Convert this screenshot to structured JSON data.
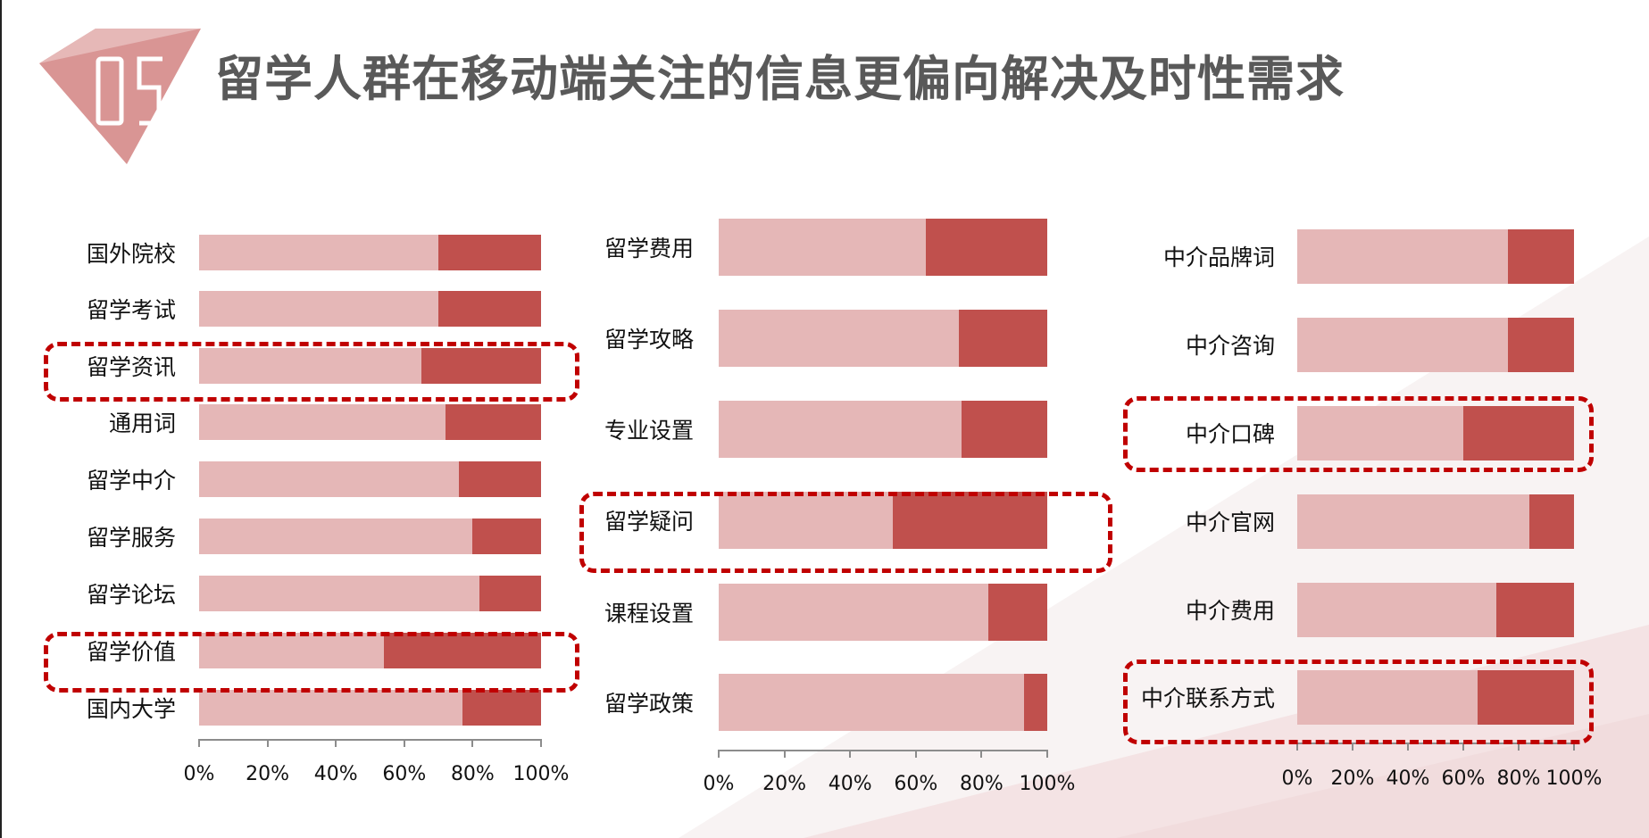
{
  "title": "留学人群在移动端关注的信息更偏向解决及时性需求",
  "section_number": "05",
  "colors": {
    "series1": "#e5b7b7",
    "series2": "#c0504d",
    "highlight": "#c00000",
    "title": "#595959"
  },
  "chart_data": [
    {
      "type": "bar",
      "stacked": "percent",
      "orientation": "horizontal",
      "categories": [
        "国外院校",
        "留学考试",
        "留学资讯",
        "通用词",
        "留学中介",
        "留学服务",
        "留学论坛",
        "留学价值",
        "国内大学"
      ],
      "series": [
        {
          "name": "series1",
          "values": [
            70,
            70,
            65,
            72,
            76,
            80,
            82,
            54,
            77
          ]
        },
        {
          "name": "series2",
          "values": [
            30,
            30,
            35,
            28,
            24,
            20,
            18,
            46,
            23
          ]
        }
      ],
      "xlim": [
        0,
        100
      ],
      "tick_labels": [
        "0%",
        "20%",
        "40%",
        "60%",
        "80%",
        "100%"
      ],
      "highlighted": [
        "留学资讯",
        "留学价值"
      ]
    },
    {
      "type": "bar",
      "stacked": "percent",
      "orientation": "horizontal",
      "categories": [
        "留学费用",
        "留学攻略",
        "专业设置",
        "留学疑问",
        "课程设置",
        "留学政策"
      ],
      "series": [
        {
          "name": "series1",
          "values": [
            63,
            73,
            74,
            53,
            82,
            93
          ]
        },
        {
          "name": "series2",
          "values": [
            37,
            27,
            26,
            47,
            18,
            7
          ]
        }
      ],
      "xlim": [
        0,
        100
      ],
      "tick_labels": [
        "0%",
        "20%",
        "40%",
        "60%",
        "80%",
        "100%"
      ],
      "highlighted": [
        "留学疑问"
      ]
    },
    {
      "type": "bar",
      "stacked": "percent",
      "orientation": "horizontal",
      "categories": [
        "中介品牌词",
        "中介咨询",
        "中介口碑",
        "中介官网",
        "中介费用",
        "中介联系方式"
      ],
      "series": [
        {
          "name": "series1",
          "values": [
            76,
            76,
            60,
            84,
            72,
            65
          ]
        },
        {
          "name": "series2",
          "values": [
            24,
            24,
            40,
            16,
            28,
            35
          ]
        }
      ],
      "xlim": [
        0,
        100
      ],
      "tick_labels": [
        "0%",
        "20%",
        "40%",
        "60%",
        "80%",
        "100%"
      ],
      "highlighted": [
        "中介口碑",
        "中介联系方式"
      ]
    }
  ]
}
